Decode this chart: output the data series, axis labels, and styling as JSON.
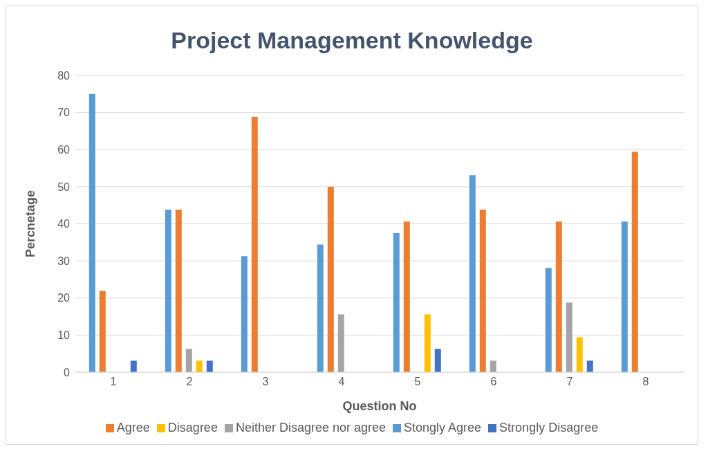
{
  "chart_data": {
    "type": "bar",
    "title": "Project Management Knowledge",
    "xlabel": "Question No",
    "ylabel": "Percnetage",
    "categories": [
      "1",
      "2",
      "3",
      "4",
      "5",
      "6",
      "7",
      "8"
    ],
    "series": [
      {
        "name": "Stongly Agree",
        "color": "#5b9bd5",
        "values": [
          75,
          43.8,
          31.3,
          34.4,
          37.5,
          53.1,
          28.1,
          40.6
        ]
      },
      {
        "name": "Agree",
        "color": "#ed7d31",
        "values": [
          21.9,
          43.8,
          68.8,
          50,
          40.6,
          43.8,
          40.6,
          59.4
        ]
      },
      {
        "name": "Neither Disagree nor agree",
        "color": "#a5a5a5",
        "values": [
          0,
          6.3,
          0,
          15.6,
          0,
          3.1,
          18.8,
          0
        ]
      },
      {
        "name": "Disagree",
        "color": "#ffc000",
        "values": [
          0,
          3.1,
          0,
          0,
          15.6,
          0,
          9.4,
          0
        ]
      },
      {
        "name": "Strongly Disagree",
        "color": "#4472c4",
        "values": [
          3.1,
          3.1,
          0,
          0,
          6.3,
          0,
          3.1,
          0
        ]
      }
    ],
    "ylim": [
      0,
      80
    ],
    "yticks": [
      0,
      10,
      20,
      30,
      40,
      50,
      60,
      70,
      80
    ],
    "grid": "y",
    "legend": "bottom"
  }
}
